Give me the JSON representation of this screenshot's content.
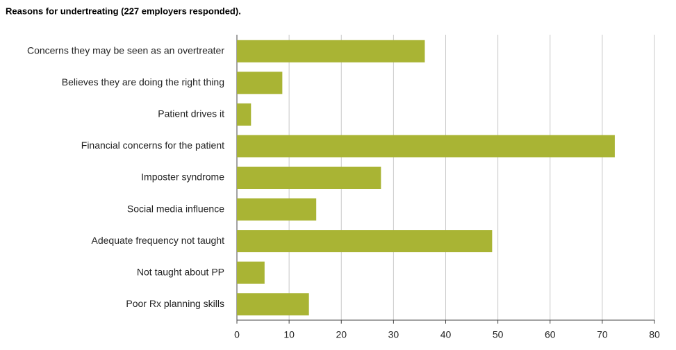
{
  "chart_data": {
    "type": "bar",
    "orientation": "horizontal",
    "title": "Reasons for undertreating (227 employers responded).",
    "categories": [
      "Concerns they may be seen as an overtreater",
      "Believes they are doing the right thing",
      "Patient drives it",
      "Financial concerns for the patient",
      "Imposter syndrome",
      "Social media influence",
      "Adequate frequency not taught",
      "Not taught about PP",
      "Poor Rx planning skills"
    ],
    "values": [
      36,
      8.7,
      2.7,
      72.4,
      27.6,
      15.2,
      48.9,
      5.3,
      13.8
    ],
    "color": "#a9b434",
    "xlim": [
      0,
      80
    ],
    "xticks": [
      0,
      10,
      20,
      30,
      40,
      50,
      60,
      70,
      80
    ],
    "grid": true
  }
}
